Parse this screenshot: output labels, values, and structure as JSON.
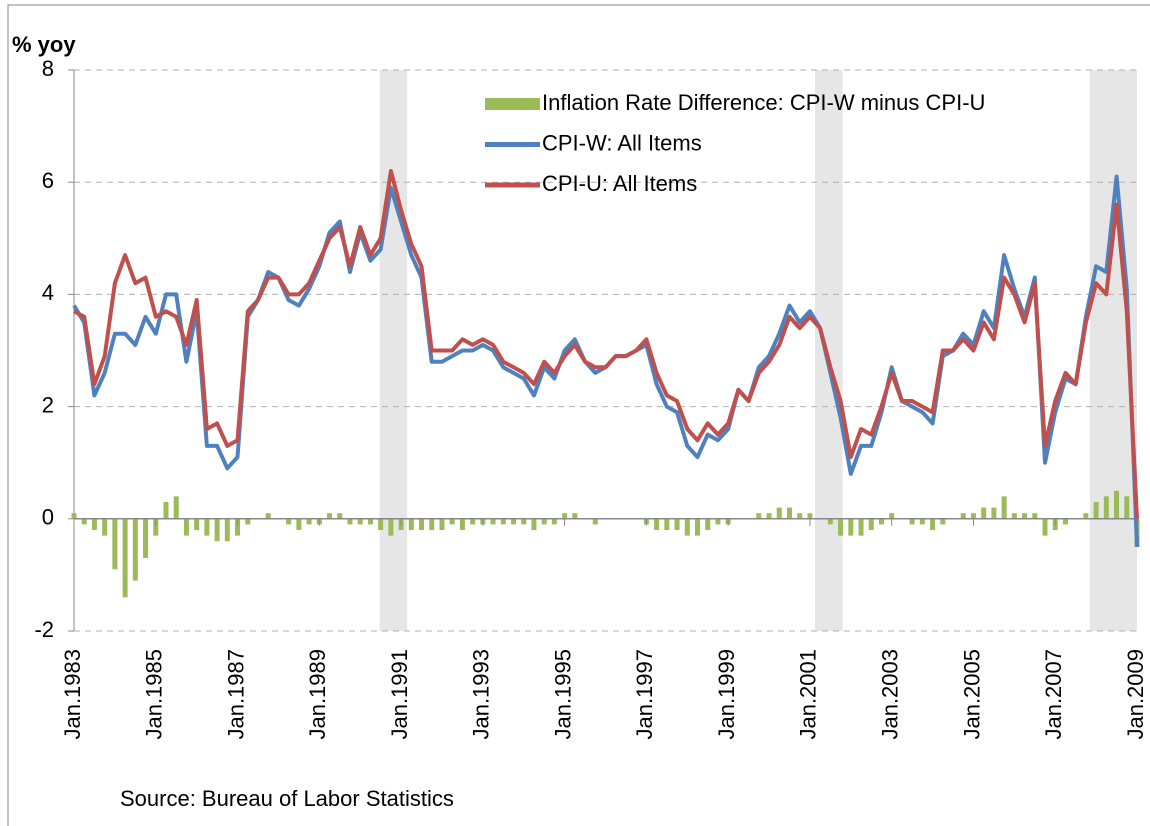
{
  "chart_data": {
    "type": "combo",
    "y_axis_label": "% yoy",
    "source": "Source: Bureau of Labor Statistics",
    "categories": [
      "Jan.1983",
      null,
      null,
      null,
      null,
      null,
      null,
      null,
      "Jan.1985",
      null,
      null,
      null,
      null,
      null,
      null,
      null,
      "Jan.1987",
      null,
      null,
      null,
      null,
      null,
      null,
      null,
      "Jan.1989",
      null,
      null,
      null,
      null,
      null,
      null,
      null,
      "Jan.1991",
      null,
      null,
      null,
      null,
      null,
      null,
      null,
      "Jan.1993",
      null,
      null,
      null,
      null,
      null,
      null,
      null,
      "Jan.1995",
      null,
      null,
      null,
      null,
      null,
      null,
      null,
      "Jan.1997",
      null,
      null,
      null,
      null,
      null,
      null,
      null,
      "Jan.1999",
      null,
      null,
      null,
      null,
      null,
      null,
      null,
      "Jan.2001",
      null,
      null,
      null,
      null,
      null,
      null,
      null,
      "Jan.2003",
      null,
      null,
      null,
      null,
      null,
      null,
      null,
      "Jan.2005",
      null,
      null,
      null,
      null,
      null,
      null,
      null,
      "Jan.2007",
      null,
      null,
      null,
      null,
      null,
      null,
      null,
      "Jan.2009"
    ],
    "series": [
      {
        "name": "Inflation Rate Difference: CPI-W minus CPI-U",
        "type": "bar",
        "color": "#9bbb59",
        "values": [
          0.1,
          -0.1,
          -0.2,
          -0.3,
          -0.9,
          -1.4,
          -1.1,
          -0.7,
          -0.3,
          0.3,
          0.4,
          -0.3,
          -0.2,
          -0.3,
          -0.4,
          -0.4,
          -0.3,
          -0.1,
          0.0,
          0.1,
          0.0,
          -0.1,
          -0.2,
          -0.1,
          -0.1,
          0.1,
          0.1,
          -0.1,
          -0.1,
          -0.1,
          -0.2,
          -0.3,
          -0.2,
          -0.2,
          -0.2,
          -0.2,
          -0.2,
          -0.1,
          -0.2,
          -0.1,
          -0.1,
          -0.1,
          -0.1,
          -0.1,
          -0.1,
          -0.2,
          -0.1,
          -0.1,
          0.1,
          0.1,
          0.0,
          -0.1,
          0.0,
          0.0,
          0.0,
          0.0,
          -0.1,
          -0.2,
          -0.2,
          -0.2,
          -0.3,
          -0.3,
          -0.2,
          -0.1,
          -0.1,
          0.0,
          0.0,
          0.1,
          0.1,
          0.2,
          0.2,
          0.1,
          0.1,
          0.0,
          -0.1,
          -0.3,
          -0.3,
          -0.3,
          -0.2,
          -0.1,
          0.1,
          0.0,
          -0.1,
          -0.1,
          -0.2,
          -0.1,
          0.0,
          0.1,
          0.1,
          0.2,
          0.2,
          0.4,
          0.1,
          0.1,
          0.1,
          -0.3,
          -0.2,
          -0.1,
          0.0,
          0.1,
          0.3,
          0.4,
          0.5,
          0.4,
          -0.5
        ]
      },
      {
        "name": "CPI-W: All Items",
        "type": "line",
        "color": "#4f81bd",
        "values": [
          3.8,
          3.5,
          2.2,
          2.6,
          3.3,
          3.3,
          3.1,
          3.6,
          3.3,
          4.0,
          4.0,
          2.8,
          3.7,
          1.3,
          1.3,
          0.9,
          1.1,
          3.6,
          3.9,
          4.4,
          4.3,
          3.9,
          3.8,
          4.1,
          4.5,
          5.1,
          5.3,
          4.4,
          5.1,
          4.6,
          4.8,
          5.9,
          5.3,
          4.7,
          4.3,
          2.8,
          2.8,
          2.9,
          3.0,
          3.0,
          3.1,
          3.0,
          2.7,
          2.6,
          2.5,
          2.2,
          2.7,
          2.5,
          3.0,
          3.2,
          2.8,
          2.6,
          2.7,
          2.9,
          2.9,
          3.0,
          3.1,
          2.4,
          2.0,
          1.9,
          1.3,
          1.1,
          1.5,
          1.4,
          1.6,
          2.3,
          2.1,
          2.7,
          2.9,
          3.3,
          3.8,
          3.5,
          3.7,
          3.4,
          2.6,
          1.8,
          0.8,
          1.3,
          1.3,
          1.9,
          2.7,
          2.1,
          2.0,
          1.9,
          1.7,
          2.9,
          3.0,
          3.3,
          3.1,
          3.7,
          3.4,
          4.7,
          4.1,
          3.6,
          4.3,
          1.0,
          1.9,
          2.5,
          2.4,
          3.6,
          4.5,
          4.4,
          6.1,
          4.1,
          -0.5
        ]
      },
      {
        "name": "CPI-U: All Items",
        "type": "line",
        "color": "#c0504d",
        "values": [
          3.7,
          3.6,
          2.4,
          2.9,
          4.2,
          4.7,
          4.2,
          4.3,
          3.6,
          3.7,
          3.6,
          3.1,
          3.9,
          1.6,
          1.7,
          1.3,
          1.4,
          3.7,
          3.9,
          4.3,
          4.3,
          4.0,
          4.0,
          4.2,
          4.6,
          5.0,
          5.2,
          4.5,
          5.2,
          4.7,
          5.0,
          6.2,
          5.5,
          4.9,
          4.5,
          3.0,
          3.0,
          3.0,
          3.2,
          3.1,
          3.2,
          3.1,
          2.8,
          2.7,
          2.6,
          2.4,
          2.8,
          2.6,
          2.9,
          3.1,
          2.8,
          2.7,
          2.7,
          2.9,
          2.9,
          3.0,
          3.2,
          2.6,
          2.2,
          2.1,
          1.6,
          1.4,
          1.7,
          1.5,
          1.7,
          2.3,
          2.1,
          2.6,
          2.8,
          3.1,
          3.6,
          3.4,
          3.6,
          3.4,
          2.7,
          2.1,
          1.1,
          1.6,
          1.5,
          2.0,
          2.6,
          2.1,
          2.1,
          2.0,
          1.9,
          3.0,
          3.0,
          3.2,
          3.0,
          3.5,
          3.2,
          4.3,
          4.0,
          3.5,
          4.2,
          1.3,
          2.1,
          2.6,
          2.4,
          3.5,
          4.2,
          4.0,
          5.6,
          3.7,
          0.0
        ]
      }
    ],
    "shaded_periods": [
      {
        "start": 29.9,
        "end": 32.6
      },
      {
        "start": 72.5,
        "end": 75.2
      },
      {
        "start": 99.4,
        "end": 104
      }
    ],
    "ylim": [
      -2,
      8
    ],
    "yticks": [
      -2,
      0,
      2,
      4,
      6,
      8
    ],
    "grid": true
  }
}
